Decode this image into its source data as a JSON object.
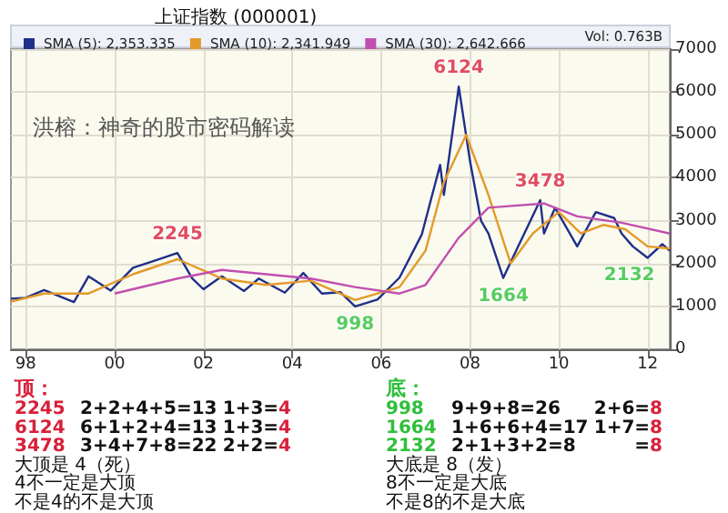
{
  "chart_data": {
    "type": "line",
    "title": "上证指数 (000001)",
    "legend": "top",
    "grid": true,
    "xlim": [
      "1997-09",
      "2012-07"
    ],
    "xticks": [
      {
        "value": "1998-01",
        "label": "98"
      },
      {
        "value": "2000-01",
        "label": "00"
      },
      {
        "value": "2002-01",
        "label": "02"
      },
      {
        "value": "2004-01",
        "label": "04"
      },
      {
        "value": "2006-01",
        "label": "06"
      },
      {
        "value": "2008-01",
        "label": "08"
      },
      {
        "value": "2010-01",
        "label": "10"
      },
      {
        "value": "2012-01",
        "label": "12"
      }
    ],
    "ylim": [
      0,
      7000
    ],
    "yticks": [
      0,
      1000,
      2000,
      3000,
      4000,
      5000,
      6000,
      7000
    ],
    "series": [
      {
        "name": "SMA (5): 2,353.335",
        "color": "#1f2f8a",
        "x": [
          "1997-09",
          "1998-01",
          "1998-06",
          "1999-02",
          "1999-06",
          "1999-12",
          "2000-06",
          "2000-12",
          "2001-06",
          "2001-10",
          "2002-01",
          "2002-06",
          "2002-12",
          "2003-04",
          "2003-11",
          "2004-04",
          "2004-09",
          "2005-02",
          "2005-06",
          "2005-12",
          "2006-06",
          "2006-12",
          "2007-05",
          "2007-06",
          "2007-10",
          "2008-01",
          "2008-04",
          "2008-06",
          "2008-10",
          "2009-02",
          "2009-08",
          "2009-09",
          "2009-12",
          "2010-06",
          "2010-11",
          "2011-04",
          "2011-06",
          "2011-09",
          "2012-01",
          "2012-05",
          "2012-07"
        ],
        "values": [
          1180,
          1200,
          1380,
          1100,
          1700,
          1370,
          1900,
          2070,
          2245,
          1650,
          1400,
          1700,
          1360,
          1650,
          1320,
          1780,
          1300,
          1330,
          998,
          1160,
          1670,
          2675,
          4300,
          3600,
          6124,
          4400,
          3000,
          2700,
          1664,
          2400,
          3478,
          2700,
          3300,
          2400,
          3200,
          3060,
          2700,
          2400,
          2132,
          2450,
          2300
        ]
      },
      {
        "name": "SMA (10): 2,341.949",
        "color": "#e39a2a",
        "x": [
          "1997-09",
          "1998-06",
          "1999-06",
          "2000-06",
          "2001-06",
          "2002-06",
          "2003-06",
          "2004-06",
          "2005-06",
          "2006-06",
          "2007-01",
          "2007-06",
          "2007-12",
          "2008-06",
          "2008-12",
          "2009-06",
          "2010-01",
          "2010-07",
          "2011-01",
          "2011-07",
          "2012-01",
          "2012-07"
        ],
        "values": [
          1110,
          1300,
          1300,
          1750,
          2100,
          1650,
          1500,
          1600,
          1150,
          1450,
          2300,
          3900,
          5000,
          3600,
          2000,
          2700,
          3200,
          2700,
          2900,
          2800,
          2400,
          2350
        ]
      },
      {
        "name": "SMA (30): 2,642.666",
        "color": "#c04fb0",
        "x": [
          "2000-01",
          "2001-06",
          "2002-06",
          "2003-06",
          "2004-06",
          "2005-06",
          "2006-06",
          "2007-01",
          "2007-10",
          "2008-06",
          "2009-01",
          "2009-09",
          "2010-06",
          "2011-06",
          "2012-07"
        ],
        "values": [
          1300,
          1650,
          1850,
          1750,
          1650,
          1450,
          1300,
          1500,
          2600,
          3300,
          3350,
          3400,
          3100,
          2950,
          2700
        ]
      }
    ],
    "annotations": [
      {
        "text": "2245",
        "x": "2001-06",
        "y": 2245
      },
      {
        "text": "6124",
        "x": "2007-10",
        "y": 6124
      },
      {
        "text": "3478",
        "x": "2009-08",
        "y": 3478
      },
      {
        "text": "998",
        "x": "2005-06",
        "y": 998
      },
      {
        "text": "1664",
        "x": "2008-10",
        "y": 1664
      },
      {
        "text": "2132",
        "x": "2012-01",
        "y": 2132
      },
      "洪榕：神奇的股市密码解读",
      "Vol: 0.763B",
      "顶：",
      "2245 2+2+4+5=13 1+3=4",
      "6124 6+1+2+4=13 1+3=4",
      "3478 3+4+7+8=22 2+2=4",
      "大顶是 4（死）",
      "4不一定是大顶",
      "不是4的不是大顶",
      "底：",
      "998 9+9+8=26 2+6=8",
      "1664 1+6+6+4=17 1+7=8",
      "2132 2+1+3+2=8 =8",
      "大底是 8（发）",
      "8不一定是大底",
      "不是8的不是大底"
    ]
  }
}
